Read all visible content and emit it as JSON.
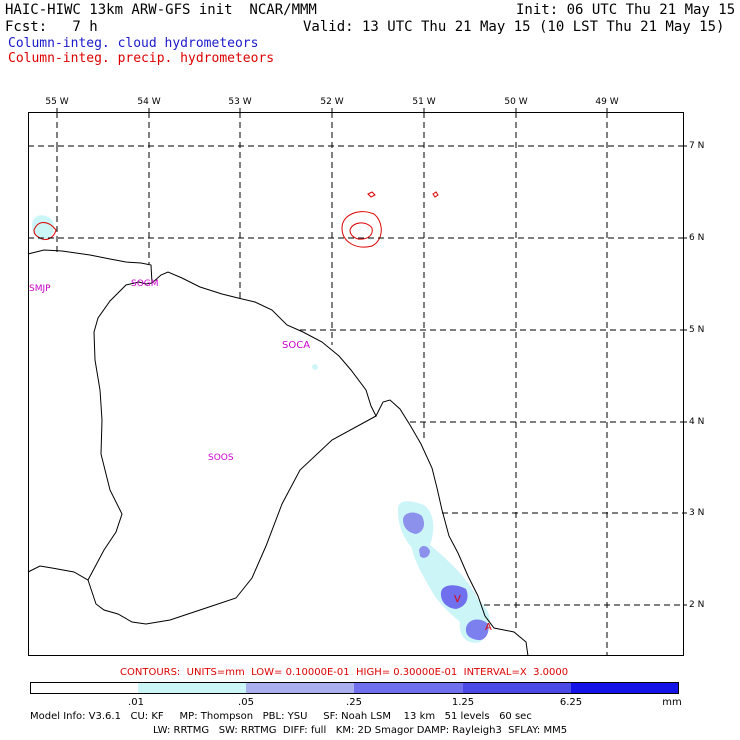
{
  "header": {
    "title_left": "HAIC-HIWC 13km ARW-GFS init  NCAR/MMM",
    "init": "Init: 06 UTC Thu 21 May 15",
    "fcst": "Fcst:   7 h",
    "valid": "Valid: 13 UTC Thu 21 May 15 (10 LST Thu 21 May 15)",
    "field_cloud": "Column-integ. cloud hydrometeors",
    "field_precip": "Column-integ. precip. hydrometeors",
    "colors": {
      "cloud": "#1a1acc",
      "precip": "#dd0000"
    }
  },
  "map": {
    "lon_labels": [
      "55 W",
      "54 W",
      "53 W",
      "52 W",
      "51 W",
      "50 W",
      "49 W"
    ],
    "lat_labels": [
      "7 N",
      "6 N",
      "5 N",
      "4 N",
      "3 N",
      "2 N"
    ],
    "stations": [
      "SMJP",
      "SOGM",
      "SOCA",
      "SOOS"
    ],
    "markers": [
      "V",
      "A"
    ]
  },
  "contours_info": "CONTOURS:  UNITS=mm  LOW= 0.10000E-01  HIGH= 0.30000E-01  INTERVAL=X  3.0000",
  "colorbar": {
    "labels": [
      ".01",
      ".05",
      ".25",
      "1.25",
      "6.25"
    ],
    "unit": "mm",
    "colors": [
      "#ffffff",
      "#ccf5f8",
      "#aab0ee",
      "#7070ee",
      "#4a4ae6",
      "#1414e8"
    ]
  },
  "model_info": {
    "line1": "Model Info: V3.6.1   CU: KF     MP: Thompson   PBL: YSU     SF: Noah LSM    13 km   51 levels   60 sec",
    "line2": "LW: RRTMG   SW: RRTMG  DIFF: full   KM: 2D Smagor DAMP: Rayleigh3  SFLAY: MM5"
  }
}
